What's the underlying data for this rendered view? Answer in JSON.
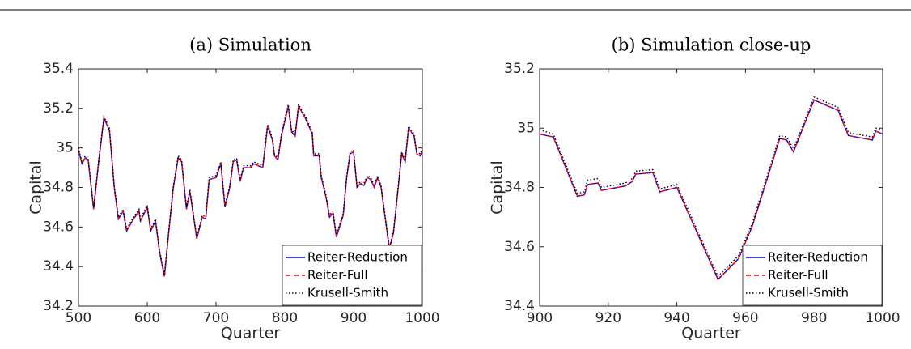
{
  "chart_data": [
    {
      "type": "line",
      "title": "(a) Simulation",
      "xlabel": "Quarter",
      "ylabel": "Capital",
      "x": [
        500,
        505,
        510,
        514,
        522,
        530,
        537,
        545,
        552,
        558,
        565,
        570,
        580,
        588,
        590,
        600,
        605,
        612,
        618,
        625,
        632,
        638,
        645,
        650,
        657,
        662,
        672,
        680,
        685,
        690,
        700,
        707,
        713,
        720,
        725,
        730,
        735,
        740,
        750,
        755,
        768,
        775,
        782,
        785,
        790,
        795,
        805,
        810,
        815,
        820,
        830,
        840,
        842,
        850,
        853,
        860,
        865,
        870,
        875,
        885,
        890,
        895,
        900,
        905,
        910,
        915,
        920,
        925,
        930,
        935,
        940,
        952,
        958,
        962,
        970,
        975,
        980,
        988,
        992,
        997,
        1000
      ],
      "series": [
        {
          "name": "Reiter-Reduction",
          "color": "#0000ff",
          "line_style": "solid",
          "values": [
            34.99,
            34.92,
            34.95,
            34.94,
            34.69,
            34.95,
            35.15,
            35.09,
            34.8,
            34.64,
            34.68,
            34.58,
            34.64,
            34.68,
            34.63,
            34.7,
            34.58,
            34.63,
            34.47,
            34.35,
            34.6,
            34.8,
            34.95,
            34.93,
            34.69,
            34.78,
            34.54,
            34.65,
            34.64,
            34.84,
            34.85,
            34.92,
            34.7,
            34.8,
            34.93,
            34.94,
            34.83,
            34.9,
            34.9,
            34.92,
            34.9,
            35.11,
            35.04,
            34.96,
            34.94,
            35.06,
            35.21,
            35.08,
            35.06,
            35.21,
            35.15,
            35.07,
            34.96,
            34.96,
            34.85,
            34.75,
            34.65,
            34.67,
            34.55,
            34.66,
            34.85,
            34.97,
            34.98,
            34.8,
            34.82,
            34.81,
            34.85,
            34.84,
            34.8,
            34.85,
            34.8,
            34.49,
            34.57,
            34.7,
            34.97,
            34.93,
            35.1,
            35.06,
            34.97,
            34.96,
            34.99
          ]
        },
        {
          "name": "Reiter-Full",
          "color": "#ff0000",
          "line_style": "dashed",
          "values": [
            34.99,
            34.92,
            34.95,
            34.94,
            34.69,
            34.95,
            35.15,
            35.09,
            34.8,
            34.64,
            34.68,
            34.58,
            34.64,
            34.68,
            34.63,
            34.7,
            34.58,
            34.63,
            34.47,
            34.35,
            34.6,
            34.8,
            34.95,
            34.93,
            34.69,
            34.78,
            34.54,
            34.65,
            34.64,
            34.84,
            34.85,
            34.92,
            34.7,
            34.8,
            34.93,
            34.94,
            34.83,
            34.9,
            34.9,
            34.92,
            34.9,
            35.11,
            35.04,
            34.96,
            34.94,
            35.06,
            35.21,
            35.08,
            35.06,
            35.21,
            35.15,
            35.07,
            34.96,
            34.96,
            34.85,
            34.75,
            34.65,
            34.67,
            34.55,
            34.66,
            34.85,
            34.97,
            34.98,
            34.8,
            34.82,
            34.81,
            34.85,
            34.84,
            34.8,
            34.85,
            34.8,
            34.49,
            34.57,
            34.7,
            34.97,
            34.93,
            35.1,
            35.06,
            34.97,
            34.96,
            34.99
          ]
        },
        {
          "name": "Krusell-Smith",
          "color": "#000000",
          "line_style": "dotted",
          "values": [
            35.0,
            34.93,
            34.96,
            34.95,
            34.7,
            34.96,
            35.16,
            35.1,
            34.81,
            34.65,
            34.69,
            34.59,
            34.65,
            34.69,
            34.64,
            34.71,
            34.59,
            34.64,
            34.48,
            34.36,
            34.61,
            34.81,
            34.96,
            34.94,
            34.7,
            34.79,
            34.55,
            34.66,
            34.65,
            34.85,
            34.86,
            34.93,
            34.71,
            34.81,
            34.94,
            34.95,
            34.84,
            34.91,
            34.91,
            34.93,
            34.91,
            35.12,
            35.05,
            34.97,
            34.95,
            35.07,
            35.22,
            35.09,
            35.07,
            35.22,
            35.16,
            35.08,
            34.97,
            34.97,
            34.86,
            34.76,
            34.66,
            34.68,
            34.56,
            34.67,
            34.86,
            34.98,
            34.99,
            34.81,
            34.83,
            34.82,
            34.86,
            34.85,
            34.81,
            34.86,
            34.81,
            34.5,
            34.58,
            34.71,
            34.98,
            34.94,
            35.11,
            35.07,
            34.98,
            34.97,
            35.0
          ]
        }
      ],
      "xlim": [
        500,
        1000
      ],
      "xticks": [
        500,
        600,
        700,
        800,
        900,
        1000
      ],
      "ylim": [
        34.2,
        35.4
      ],
      "yticks": [
        34.2,
        34.4,
        34.6,
        34.8,
        35,
        35.2,
        35.4
      ],
      "legend": "lower right"
    },
    {
      "type": "line",
      "title": "(b) Simulation close-up",
      "xlabel": "Quarter",
      "ylabel": "Capital",
      "x": [
        900,
        904,
        911,
        913,
        914,
        917,
        918,
        925,
        927,
        928,
        933,
        935,
        940,
        952,
        958,
        962,
        970,
        972,
        974,
        980,
        987,
        990,
        997,
        998,
        1000
      ],
      "series": [
        {
          "name": "Reiter-Reduction",
          "color": "#0000ff",
          "line_style": "solid",
          "values": [
            34.98,
            34.97,
            34.77,
            34.775,
            34.81,
            34.815,
            34.79,
            34.805,
            34.82,
            34.845,
            34.85,
            34.785,
            34.8,
            34.49,
            34.56,
            34.67,
            34.965,
            34.96,
            34.92,
            35.095,
            35.06,
            34.975,
            34.96,
            34.99,
            34.98
          ]
        },
        {
          "name": "Reiter-Full",
          "color": "#ff0000",
          "line_style": "dashed",
          "values": [
            34.98,
            34.97,
            34.77,
            34.775,
            34.81,
            34.815,
            34.79,
            34.805,
            34.82,
            34.845,
            34.85,
            34.785,
            34.8,
            34.49,
            34.56,
            34.67,
            34.965,
            34.96,
            34.92,
            35.095,
            35.06,
            34.975,
            34.96,
            34.99,
            34.98
          ]
        },
        {
          "name": "Krusell-Smith",
          "color": "#000000",
          "line_style": "dotted",
          "values": [
            34.995,
            34.98,
            34.78,
            34.785,
            34.825,
            34.83,
            34.8,
            34.815,
            34.83,
            34.855,
            34.86,
            34.795,
            34.81,
            34.5,
            34.57,
            34.68,
            34.975,
            34.97,
            34.93,
            35.105,
            35.07,
            34.985,
            34.97,
            35.0,
            34.995
          ]
        }
      ],
      "xlim": [
        900,
        1000
      ],
      "xticks": [
        900,
        920,
        940,
        960,
        980,
        1000
      ],
      "ylim": [
        34.4,
        35.2
      ],
      "yticks": [
        34.4,
        34.6,
        34.8,
        35,
        35.2
      ],
      "legend": "lower right"
    }
  ]
}
